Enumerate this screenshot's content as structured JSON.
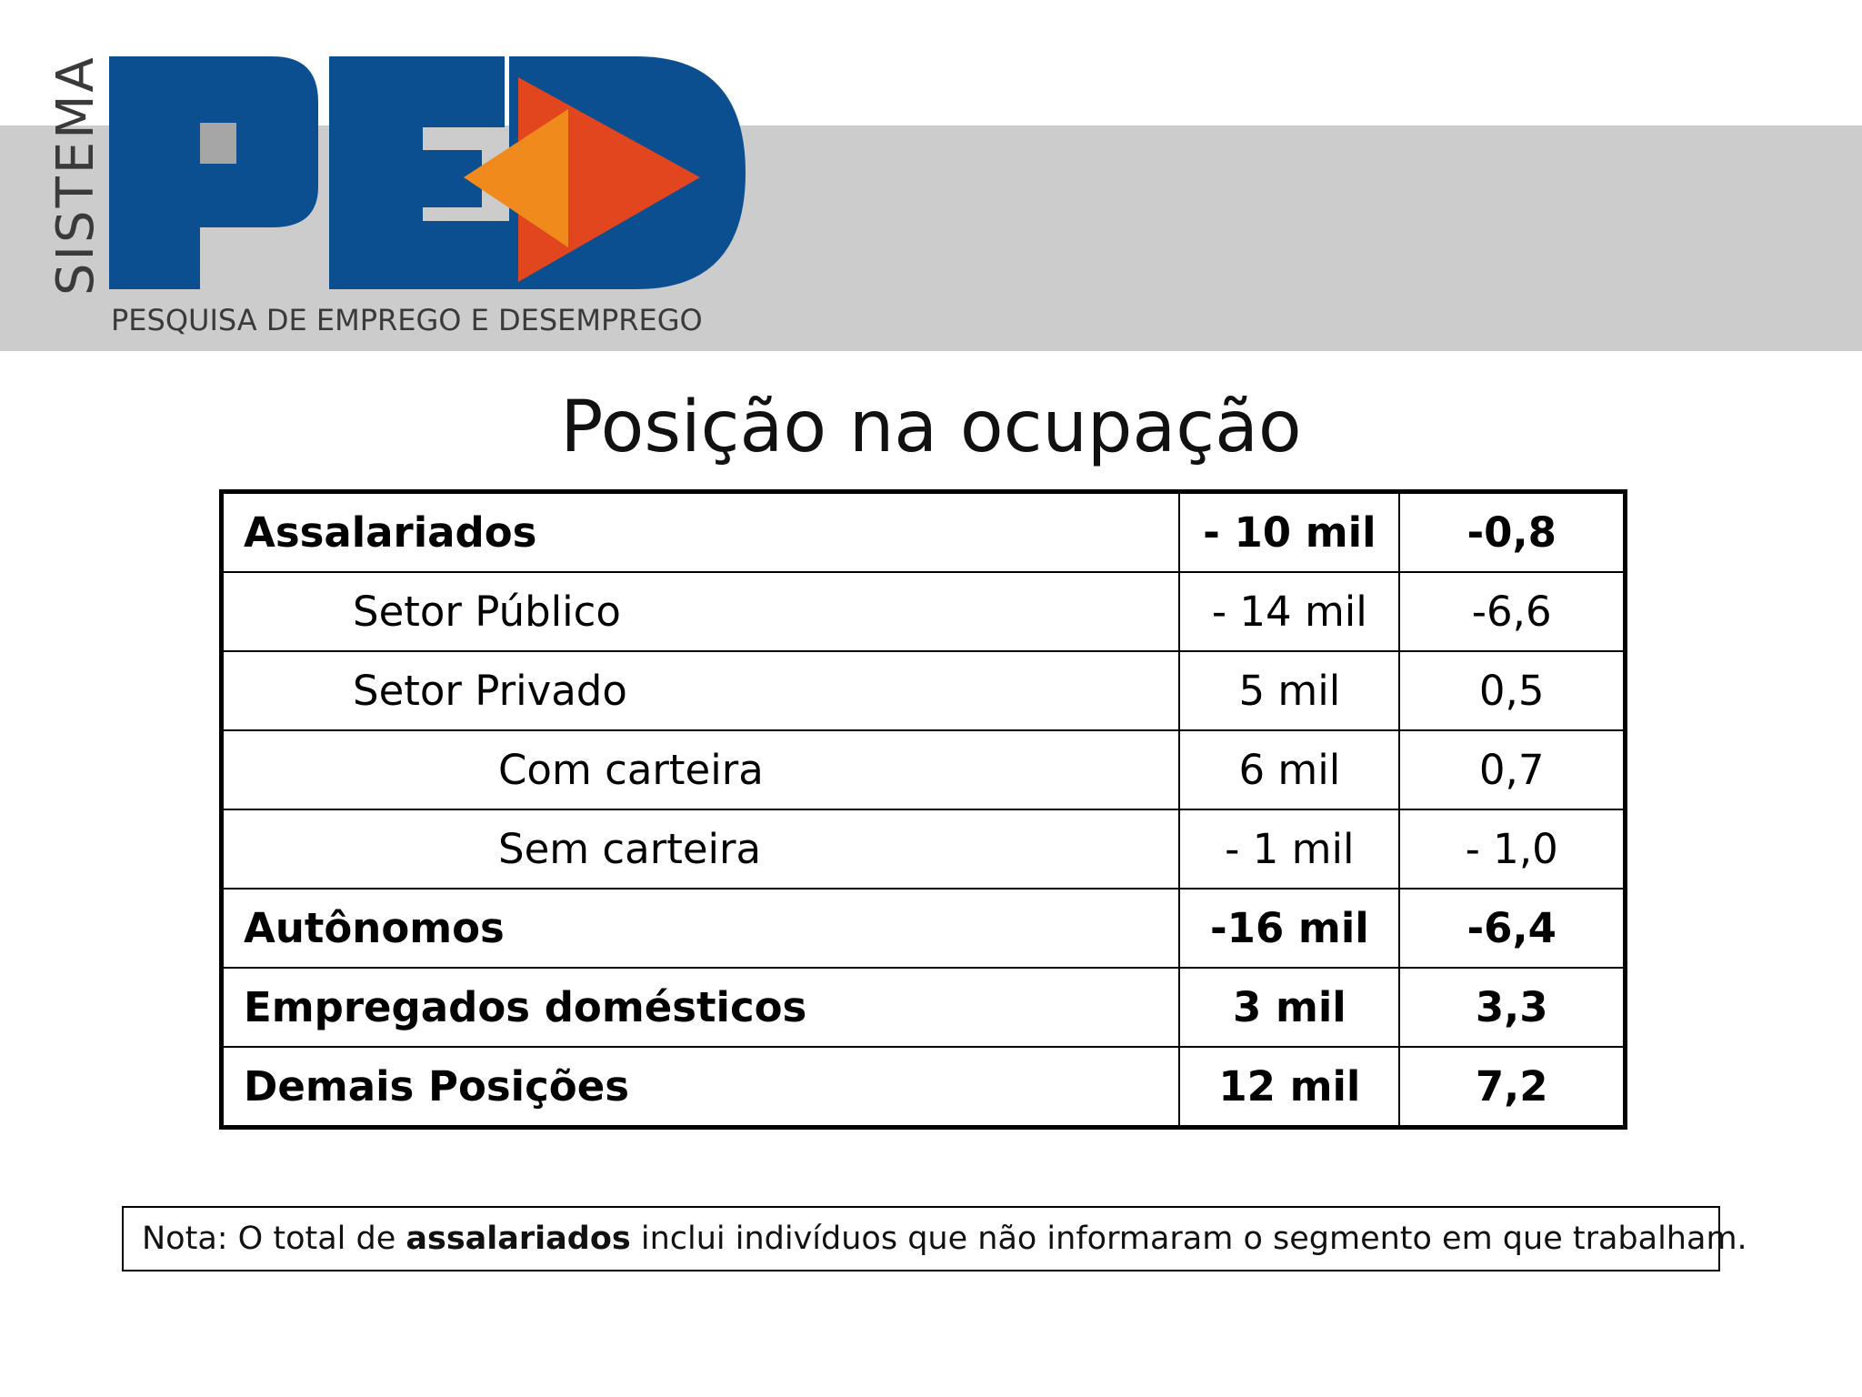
{
  "header": {
    "logo_side_text": "SISTEMA",
    "logo_letters": "PED",
    "logo_subtitle": "PESQUISA DE EMPREGO E DESEMPREGO",
    "colors": {
      "band_grey": "#cccccc",
      "logo_blue": "#0a4a8c",
      "logo_orange": "#e8501f",
      "logo_light_orange": "#f28c1e",
      "logo_grey": "#9e9e9e"
    }
  },
  "title": "Posição na ocupação",
  "table": {
    "rows": [
      {
        "label": "Assalariados",
        "value": "- 10 mil",
        "pct": "-0,8",
        "bold": true,
        "indent": 0
      },
      {
        "label": "Setor Público",
        "value": "- 14 mil",
        "pct": "-6,6",
        "bold": false,
        "indent": 1
      },
      {
        "label": "Setor Privado",
        "value": "5 mil",
        "pct": "0,5",
        "bold": false,
        "indent": 1
      },
      {
        "label": "Com carteira",
        "value": "6 mil",
        "pct": "0,7",
        "bold": false,
        "indent": 2
      },
      {
        "label": "Sem carteira",
        "value": "- 1 mil",
        "pct": "- 1,0",
        "bold": false,
        "indent": 2
      },
      {
        "label": "Autônomos",
        "value": "-16 mil",
        "pct": "-6,4",
        "bold": true,
        "indent": 0
      },
      {
        "label": "Empregados domésticos",
        "value": "3 mil",
        "pct": "3,3",
        "bold": true,
        "indent": 0
      },
      {
        "label": "Demais Posições",
        "value": "12 mil",
        "pct": "7,2",
        "bold": true,
        "indent": 0
      }
    ]
  },
  "note": {
    "prefix": "Nota: O total de ",
    "bold_word": "assalariados",
    "suffix": " inclui indivíduos que não informaram o segmento em que trabalham."
  }
}
